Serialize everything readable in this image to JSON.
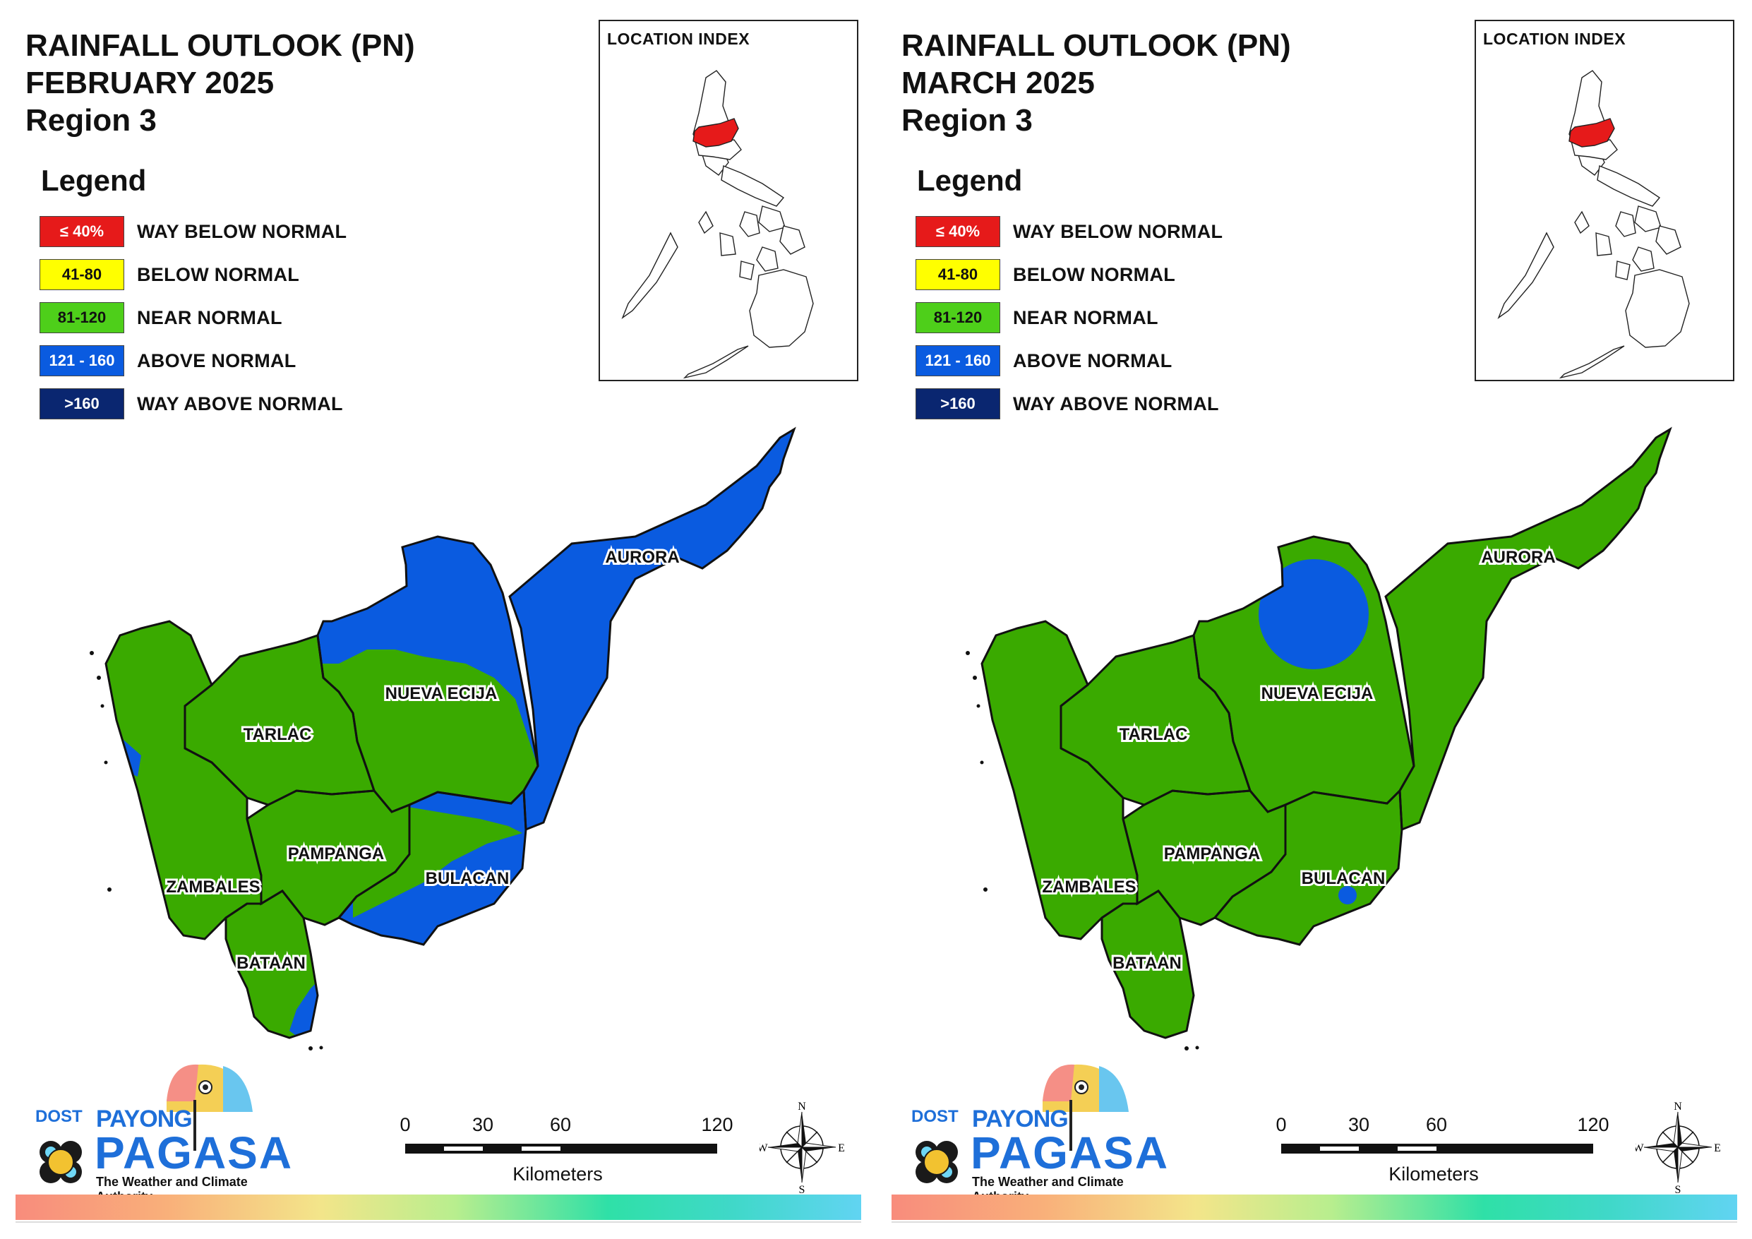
{
  "colors": {
    "way_below": "#e61a1a",
    "below": "#ffff00",
    "near": "#3aaa00",
    "near_swatch": "#4ecf1a",
    "above": "#0a5be0",
    "way_above": "#0a2670",
    "outline": "#111111"
  },
  "legend": {
    "title": "Legend",
    "items": [
      {
        "range": "≤ 40%",
        "label": "WAY BELOW NORMAL",
        "color": "#e61a1a",
        "text_color": "#ffffff"
      },
      {
        "range": "41-80",
        "label": "BELOW NORMAL",
        "color": "#ffff00",
        "text_color": "#111111"
      },
      {
        "range": "81-120",
        "label": "NEAR NORMAL",
        "color": "#4ecf1a",
        "text_color": "#111111"
      },
      {
        "range": "121 - 160",
        "label": "ABOVE NORMAL",
        "color": "#0a5be0",
        "text_color": "#ffffff"
      },
      {
        "range": ">160",
        "label": "WAY ABOVE NORMAL",
        "color": "#0a2670",
        "text_color": "#ffffff"
      }
    ]
  },
  "location_index": {
    "title": "LOCATION INDEX"
  },
  "provinces": [
    "AURORA",
    "NUEVA ECIJA",
    "TARLAC",
    "PAMPANGA",
    "BULACAN",
    "ZAMBALES",
    "BATAAN"
  ],
  "panels": [
    {
      "title_line1": "RAINFALL OUTLOOK (PN)",
      "title_line2": "FEBRUARY 2025",
      "title_line3": "Region 3",
      "outlook": {
        "AURORA": "ABOVE NORMAL",
        "NUEVA ECIJA": "NEAR NORMAL (northeast ABOVE NORMAL)",
        "TARLAC": "NEAR NORMAL",
        "PAMPANGA": "NEAR NORMAL",
        "BULACAN": "ABOVE NORMAL (northwest NEAR NORMAL)",
        "ZAMBALES": "NEAR NORMAL (small coastal ABOVE NORMAL)",
        "BATAAN": "NEAR NORMAL (southeast ABOVE NORMAL)"
      }
    },
    {
      "title_line1": "RAINFALL OUTLOOK (PN)",
      "title_line2": "MARCH 2025",
      "title_line3": "Region 3",
      "outlook": {
        "AURORA": "NEAR NORMAL",
        "NUEVA ECIJA": "NEAR NORMAL (north ABOVE NORMAL)",
        "TARLAC": "NEAR NORMAL",
        "PAMPANGA": "NEAR NORMAL",
        "BULACAN": "NEAR NORMAL (small ABOVE NORMAL spot)",
        "ZAMBALES": "NEAR NORMAL",
        "BATAAN": "NEAR NORMAL"
      }
    }
  ],
  "scale": {
    "ticks": [
      "0",
      "30",
      "60",
      "120"
    ],
    "unit": "Kilometers"
  },
  "compass": {
    "n": "N",
    "s": "S",
    "e": "E",
    "w": "W"
  },
  "logo": {
    "dost": "DOST",
    "payong": "PAYONG",
    "pagasa": "PAGASA",
    "tagline": "The Weather and Climate Authority"
  }
}
